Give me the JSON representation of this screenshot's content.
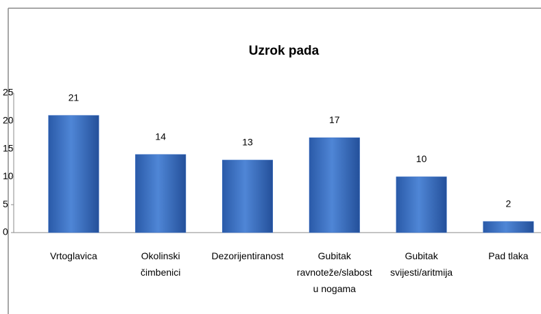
{
  "chart_data": {
    "type": "bar",
    "title": "Uzrok pada",
    "categories": [
      "Vrtoglavica",
      "Okolinski čimbenici",
      "Dezorijentiranost",
      "Gubitak ravnoteže/slabost u nogama",
      "Gubitak svijesti/aritmija",
      "Pad tlaka"
    ],
    "values": [
      21,
      14,
      13,
      17,
      10,
      2
    ],
    "color": "#3a6fc4",
    "ylim": [
      0,
      25
    ],
    "yticks": [
      0,
      5,
      10,
      15,
      20,
      25
    ],
    "grid": false
  }
}
